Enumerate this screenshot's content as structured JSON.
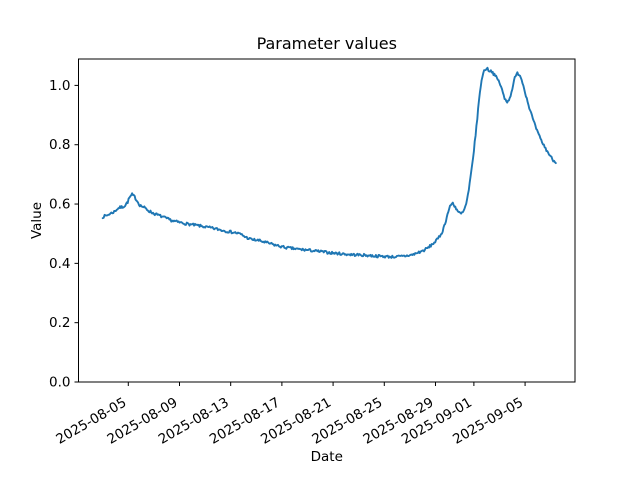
{
  "chart_data": {
    "type": "line",
    "title": "Parameter values",
    "xlabel": "Date",
    "ylabel": "Value",
    "legend": "none",
    "grid": false,
    "line_color": "#1f77b4",
    "y_ticks": [
      "0.0",
      "0.2",
      "0.4",
      "0.6",
      "0.8",
      "1.0"
    ],
    "y_tick_values": [
      0.0,
      0.2,
      0.4,
      0.6,
      0.8,
      1.0
    ],
    "ylim": [
      0.0,
      1.089
    ],
    "x_ticks": [
      {
        "label": "2025-08-05",
        "day": 2
      },
      {
        "label": "2025-08-09",
        "day": 6
      },
      {
        "label": "2025-08-13",
        "day": 10
      },
      {
        "label": "2025-08-17",
        "day": 14
      },
      {
        "label": "2025-08-21",
        "day": 18
      },
      {
        "label": "2025-08-25",
        "day": 22
      },
      {
        "label": "2025-08-29",
        "day": 26
      },
      {
        "label": "2025-09-01",
        "day": 29
      },
      {
        "label": "2025-09-05",
        "day": 33
      }
    ],
    "x_day_zero_date": "2025-08-03",
    "xlim_days": [
      -1.89,
      36.9
    ],
    "noise_amplitude": 0.0045,
    "points_days_value": [
      [
        0,
        0.557
      ],
      [
        0.3,
        0.561
      ],
      [
        0.6,
        0.568
      ],
      [
        0.9,
        0.574
      ],
      [
        1.1,
        0.582
      ],
      [
        1.3,
        0.588
      ],
      [
        1.55,
        0.59
      ],
      [
        1.75,
        0.595
      ],
      [
        1.95,
        0.607
      ],
      [
        2.1,
        0.622
      ],
      [
        2.3,
        0.632
      ],
      [
        2.5,
        0.624
      ],
      [
        2.7,
        0.61
      ],
      [
        2.9,
        0.596
      ],
      [
        3.25,
        0.588
      ],
      [
        3.6,
        0.577
      ],
      [
        4,
        0.568
      ],
      [
        4.5,
        0.56
      ],
      [
        5,
        0.551
      ],
      [
        5.5,
        0.543
      ],
      [
        6,
        0.538
      ],
      [
        6.5,
        0.534
      ],
      [
        7,
        0.53
      ],
      [
        7.5,
        0.527
      ],
      [
        8,
        0.523
      ],
      [
        8.5,
        0.519
      ],
      [
        9,
        0.515
      ],
      [
        9.5,
        0.51
      ],
      [
        10,
        0.506
      ],
      [
        10.5,
        0.502
      ],
      [
        10.8,
        0.498
      ],
      [
        11.1,
        0.49
      ],
      [
        11.4,
        0.484
      ],
      [
        11.7,
        0.48
      ],
      [
        12.2,
        0.477
      ],
      [
        12.7,
        0.471
      ],
      [
        13.2,
        0.465
      ],
      [
        13.7,
        0.459
      ],
      [
        14.2,
        0.454
      ],
      [
        14.7,
        0.451
      ],
      [
        15.2,
        0.448
      ],
      [
        15.7,
        0.446
      ],
      [
        16.2,
        0.444
      ],
      [
        16.7,
        0.441
      ],
      [
        17.2,
        0.439
      ],
      [
        17.7,
        0.436
      ],
      [
        18.2,
        0.434
      ],
      [
        18.7,
        0.432
      ],
      [
        19.2,
        0.43
      ],
      [
        19.7,
        0.429
      ],
      [
        20.2,
        0.428
      ],
      [
        20.7,
        0.427
      ],
      [
        21.2,
        0.425
      ],
      [
        21.7,
        0.424
      ],
      [
        22.2,
        0.423
      ],
      [
        22.7,
        0.422
      ],
      [
        23.2,
        0.423
      ],
      [
        23.7,
        0.425
      ],
      [
        24.2,
        0.429
      ],
      [
        24.7,
        0.437
      ],
      [
        25.1,
        0.444
      ],
      [
        25.5,
        0.455
      ],
      [
        25.9,
        0.47
      ],
      [
        26.2,
        0.483
      ],
      [
        26.5,
        0.503
      ],
      [
        26.75,
        0.535
      ],
      [
        27,
        0.575
      ],
      [
        27.2,
        0.598
      ],
      [
        27.35,
        0.603
      ],
      [
        27.55,
        0.59
      ],
      [
        27.8,
        0.572
      ],
      [
        28,
        0.567
      ],
      [
        28.2,
        0.575
      ],
      [
        28.4,
        0.6
      ],
      [
        28.6,
        0.645
      ],
      [
        28.8,
        0.71
      ],
      [
        29,
        0.78
      ],
      [
        29.2,
        0.86
      ],
      [
        29.4,
        0.95
      ],
      [
        29.6,
        1.02
      ],
      [
        29.8,
        1.05
      ],
      [
        30,
        1.058
      ],
      [
        30.2,
        1.05
      ],
      [
        30.4,
        1.048
      ],
      [
        30.6,
        1.035
      ],
      [
        30.8,
        1.025
      ],
      [
        31,
        1.01
      ],
      [
        31.2,
        0.985
      ],
      [
        31.4,
        0.955
      ],
      [
        31.6,
        0.946
      ],
      [
        31.8,
        0.955
      ],
      [
        32,
        0.99
      ],
      [
        32.2,
        1.025
      ],
      [
        32.4,
        1.041
      ],
      [
        32.6,
        1.035
      ],
      [
        32.8,
        1.01
      ],
      [
        33,
        0.978
      ],
      [
        33.2,
        0.945
      ],
      [
        33.4,
        0.916
      ],
      [
        33.6,
        0.888
      ],
      [
        33.8,
        0.862
      ],
      [
        34,
        0.84
      ],
      [
        34.2,
        0.82
      ],
      [
        34.4,
        0.803
      ],
      [
        34.6,
        0.787
      ],
      [
        34.8,
        0.773
      ],
      [
        35,
        0.76
      ],
      [
        35.2,
        0.748
      ],
      [
        35.4,
        0.738
      ]
    ]
  }
}
